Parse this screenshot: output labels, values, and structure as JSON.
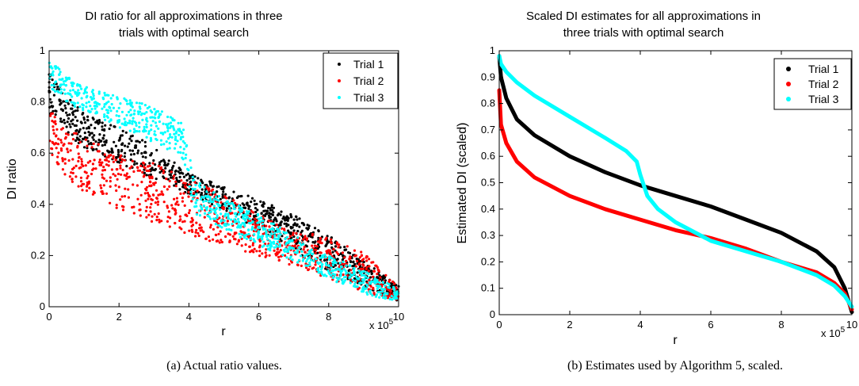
{
  "chart_data": [
    {
      "type": "scatter",
      "title_line1": "DI ratio for all approximations in three",
      "title_line2": "trials with optimal search",
      "xlabel": "r",
      "ylabel": "DI ratio",
      "x_exponent": "x 10",
      "x_exponent_power": "5",
      "xlim": [
        0,
        10
      ],
      "ylim": [
        0,
        1
      ],
      "xticks": [
        "0",
        "2",
        "4",
        "6",
        "8",
        "10"
      ],
      "yticks": [
        "0",
        "0.2",
        "0.4",
        "0.6",
        "0.8",
        "1"
      ],
      "legend_position": "top-right",
      "caption": "(a) Actual ratio values.",
      "series": [
        {
          "name": "Trial 1",
          "color": "#000000",
          "band_x": [
            0,
            0.5,
            1,
            2,
            3,
            4,
            5,
            6,
            7,
            8,
            9,
            10
          ],
          "band_low": [
            0.76,
            0.68,
            0.62,
            0.56,
            0.5,
            0.44,
            0.38,
            0.3,
            0.22,
            0.14,
            0.08,
            0.02
          ],
          "band_high": [
            0.92,
            0.84,
            0.76,
            0.7,
            0.63,
            0.52,
            0.47,
            0.42,
            0.36,
            0.28,
            0.18,
            0.08
          ]
        },
        {
          "name": "Trial 2",
          "color": "#ff0000",
          "band_x": [
            0,
            0.5,
            1,
            2,
            3,
            4,
            5,
            6,
            7,
            8,
            9,
            10
          ],
          "band_low": [
            0.6,
            0.5,
            0.45,
            0.38,
            0.33,
            0.28,
            0.24,
            0.2,
            0.16,
            0.11,
            0.06,
            0.02
          ],
          "band_high": [
            0.78,
            0.7,
            0.66,
            0.6,
            0.56,
            0.5,
            0.44,
            0.36,
            0.3,
            0.27,
            0.21,
            0.08
          ]
        },
        {
          "name": "Trial 3",
          "color": "#00ffff",
          "band_x": [
            0,
            0.5,
            1,
            2,
            3,
            3.8,
            4.2,
            5,
            6,
            7,
            8,
            9,
            10
          ],
          "band_low": [
            0.86,
            0.8,
            0.76,
            0.7,
            0.64,
            0.58,
            0.36,
            0.3,
            0.24,
            0.18,
            0.11,
            0.05,
            0.02
          ],
          "band_high": [
            0.97,
            0.9,
            0.86,
            0.82,
            0.78,
            0.72,
            0.5,
            0.42,
            0.36,
            0.28,
            0.2,
            0.14,
            0.07
          ]
        }
      ]
    },
    {
      "type": "line",
      "title_line1": "Scaled DI estimates for all approximations in",
      "title_line2": "three trials with optimal search",
      "xlabel": "r",
      "ylabel": "Estimated DI (scaled)",
      "x_exponent": "x 10",
      "x_exponent_power": "5",
      "xlim": [
        0,
        10
      ],
      "ylim": [
        0,
        1
      ],
      "xticks": [
        "0",
        "2",
        "4",
        "6",
        "8",
        "10"
      ],
      "yticks": [
        "0",
        "0.1",
        "0.2",
        "0.3",
        "0.4",
        "0.5",
        "0.6",
        "0.7",
        "0.8",
        "0.9",
        "1"
      ],
      "legend_position": "top-right",
      "caption": "(b) Estimates used by Algorithm 5, scaled.",
      "series": [
        {
          "name": "Trial 1",
          "color": "#000000",
          "x": [
            0,
            0.05,
            0.2,
            0.5,
            1,
            2,
            3,
            4,
            5,
            6,
            7,
            8,
            9,
            9.5,
            9.8,
            10
          ],
          "y": [
            0.98,
            0.9,
            0.82,
            0.74,
            0.68,
            0.6,
            0.54,
            0.49,
            0.45,
            0.41,
            0.36,
            0.31,
            0.24,
            0.18,
            0.1,
            0.01
          ]
        },
        {
          "name": "Trial 2",
          "color": "#ff0000",
          "x": [
            0,
            0.05,
            0.2,
            0.5,
            1,
            2,
            3,
            4,
            5,
            6,
            7,
            8,
            9,
            9.5,
            9.8,
            10
          ],
          "y": [
            0.85,
            0.72,
            0.65,
            0.58,
            0.52,
            0.45,
            0.4,
            0.36,
            0.32,
            0.29,
            0.25,
            0.2,
            0.16,
            0.12,
            0.08,
            0.02
          ]
        },
        {
          "name": "Trial 3",
          "color": "#00ffff",
          "x": [
            0,
            0.05,
            0.2,
            0.5,
            1,
            2,
            3,
            3.6,
            3.9,
            4.0,
            4.2,
            4.5,
            5,
            6,
            7,
            8,
            9,
            9.5,
            9.8,
            10
          ],
          "y": [
            0.98,
            0.95,
            0.92,
            0.88,
            0.83,
            0.75,
            0.67,
            0.62,
            0.58,
            0.53,
            0.45,
            0.4,
            0.35,
            0.28,
            0.24,
            0.2,
            0.15,
            0.11,
            0.07,
            0.03
          ]
        }
      ]
    }
  ]
}
